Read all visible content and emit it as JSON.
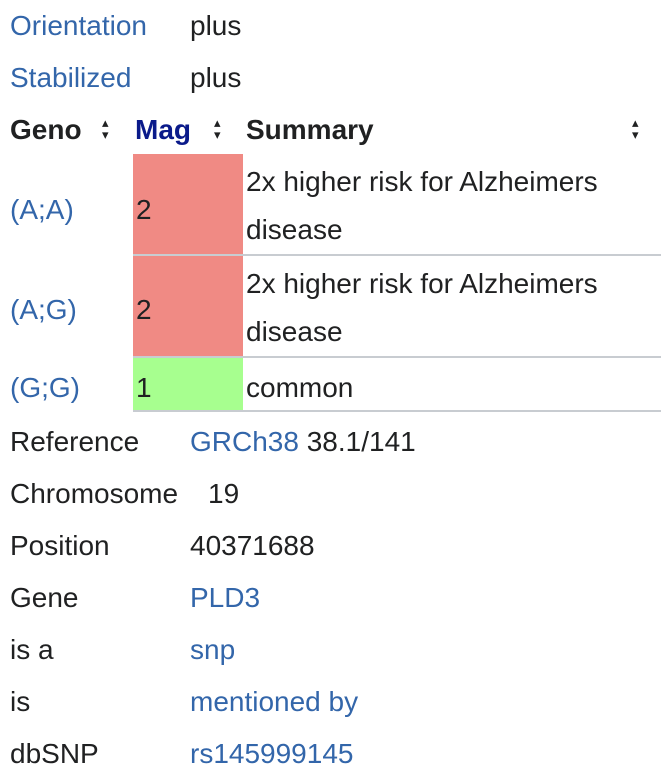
{
  "info_top": {
    "orientation": {
      "label": "Orientation",
      "value": "plus"
    },
    "stabilized": {
      "label": "Stabilized",
      "value": "plus"
    }
  },
  "table": {
    "headers": {
      "geno": "Geno",
      "mag": "Mag",
      "summary": "Summary"
    },
    "rows": [
      {
        "geno": "(A;A)",
        "mag": "2",
        "summary": "2x higher risk for Alzheimers disease",
        "mag_color": "#f08a84"
      },
      {
        "geno": "(A;G)",
        "mag": "2",
        "summary": "2x higher risk for Alzheimers disease",
        "mag_color": "#f08a84"
      },
      {
        "geno": "(G;G)",
        "mag": "1",
        "summary": "common",
        "mag_color": "#a7ff8f"
      }
    ],
    "sort_icon_name": "sort-arrows-icon"
  },
  "info_bottom": {
    "reference": {
      "label": "Reference",
      "link": "GRCh38",
      "value": "38.1/141"
    },
    "chromosome": {
      "label": "Chromosome",
      "value": "19"
    },
    "position": {
      "label": "Position",
      "value": "40371688"
    },
    "gene": {
      "label": "Gene",
      "value": "PLD3"
    },
    "is_a": {
      "label": "is a",
      "value": "snp"
    },
    "is": {
      "label": "is",
      "value": "mentioned by"
    },
    "dbsnp": {
      "label": "dbSNP",
      "value": "rs145999145"
    }
  },
  "colors": {
    "link": "#3366aa",
    "mag_header": "#0a1a8a",
    "mag_high": "#f08a84",
    "mag_low": "#a7ff8f"
  }
}
